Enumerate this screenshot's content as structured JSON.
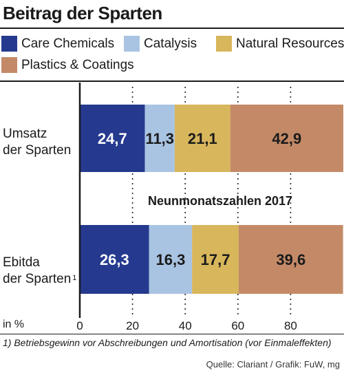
{
  "header": {
    "title": "Beitrag der Sparten"
  },
  "chart_data": {
    "type": "bar",
    "orientation": "horizontal",
    "stacked": true,
    "categories": [
      "Umsatz der Sparten",
      "Ebitda der Sparten"
    ],
    "category_labels": [
      {
        "line1": "Umsatz",
        "line2": "der Sparten",
        "footnote_mark": ""
      },
      {
        "line1": "Ebitda",
        "line2": "der Sparten",
        "footnote_mark": "1"
      }
    ],
    "series": [
      {
        "name": "Care Chemicals",
        "color": "#253a8f",
        "text_color": "#ffffff",
        "values": [
          24.7,
          26.3
        ],
        "labels": [
          "24,7",
          "26,3"
        ]
      },
      {
        "name": "Catalysis",
        "color": "#a9c4e3",
        "text_color": "#1a1a1a",
        "values": [
          11.3,
          16.3
        ],
        "labels": [
          "11,3",
          "16,3"
        ]
      },
      {
        "name": "Natural Resources",
        "color": "#d8b65c",
        "text_color": "#1a1a1a",
        "values": [
          21.1,
          17.7
        ],
        "labels": [
          "21,1",
          "17,7"
        ]
      },
      {
        "name": "Plastics & Coatings",
        "color": "#c48a67",
        "text_color": "#1a1a1a",
        "values": [
          42.9,
          39.6
        ],
        "labels": [
          "42,9",
          "39,6"
        ]
      }
    ],
    "xlim": [
      0,
      100
    ],
    "xticks": [
      0,
      20,
      40,
      60,
      80
    ],
    "x_unit_label": "in %",
    "annotation": "Neunmonatszahlen 2017",
    "grid": "vertical dotted"
  },
  "footnote": "1) Betriebsgewinn vor Abschreibungen und Amortisation (vor Einmaleffekten)",
  "source": "Quelle: Clariant / Grafik: FuW, mg"
}
